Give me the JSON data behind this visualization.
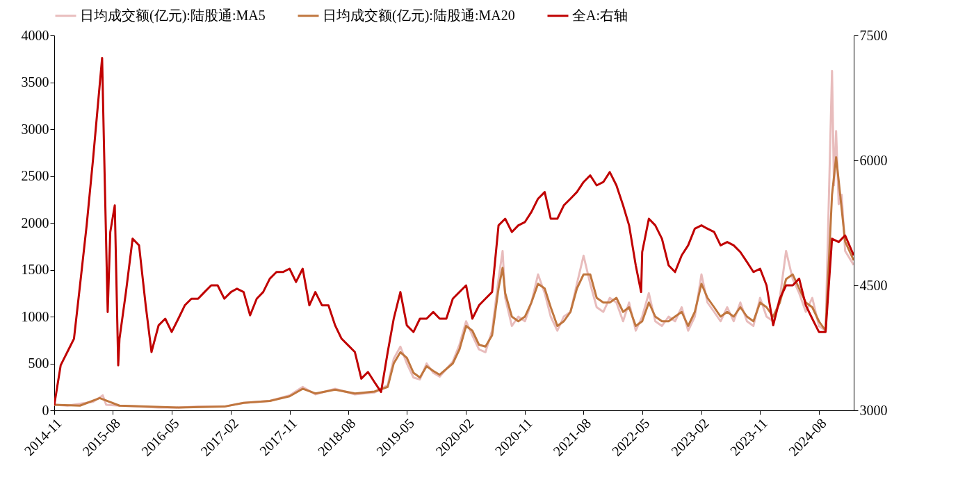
{
  "chart_data": {
    "type": "line",
    "xlim": [
      "2014-11-01",
      "2025-01-10"
    ],
    "xticks": [
      "2014-11",
      "2015-08",
      "2016-05",
      "2017-02",
      "2017-11",
      "2018-08",
      "2019-05",
      "2020-02",
      "2020-11",
      "2021-08",
      "2022-05",
      "2023-02",
      "2023-11",
      "2024-08"
    ],
    "ylim": [
      0,
      4000
    ],
    "yticks": [
      0,
      500,
      1000,
      1500,
      2000,
      2500,
      3000,
      3500,
      4000
    ],
    "y2lim": [
      3000,
      7500
    ],
    "y2ticks": [
      3000,
      4500,
      6000,
      7500
    ],
    "grid": false,
    "legend": "top",
    "line_style": "solid",
    "marker": "none",
    "series": [
      {
        "name": "日均成交额(亿元):陆股通:MA5",
        "color": "#e8bcbc",
        "x": [
          "2014-11-01",
          "2015-01",
          "2015-03",
          "2015-05",
          "2015-06-15",
          "2015-07",
          "2015-09",
          "2015-12",
          "2016-03",
          "2016-06",
          "2016-09",
          "2017-01",
          "2017-04",
          "2017-08",
          "2017-11",
          "2018-01",
          "2018-03",
          "2018-06",
          "2018-09",
          "2018-12",
          "2019-02",
          "2019-03",
          "2019-04",
          "2019-05",
          "2019-06",
          "2019-07",
          "2019-08",
          "2019-09",
          "2019-10",
          "2019-12",
          "2020-01",
          "2020-02",
          "2020-03",
          "2020-04",
          "2020-05",
          "2020-06",
          "2020-07",
          "2020-07-20",
          "2020-08",
          "2020-09",
          "2020-10",
          "2020-11",
          "2020-12",
          "2021-01",
          "2021-02",
          "2021-03",
          "2021-04",
          "2021-05",
          "2021-06",
          "2021-07",
          "2021-08",
          "2021-09",
          "2021-10",
          "2021-11",
          "2021-12",
          "2022-01",
          "2022-02",
          "2022-03",
          "2022-04",
          "2022-05",
          "2022-06",
          "2022-07",
          "2022-08",
          "2022-09",
          "2022-10",
          "2022-11",
          "2022-12",
          "2023-01",
          "2023-02",
          "2023-03",
          "2023-04",
          "2023-05",
          "2023-06",
          "2023-07",
          "2023-08",
          "2023-09",
          "2023-10",
          "2023-11",
          "2023-12",
          "2024-01",
          "2024-02",
          "2024-03",
          "2024-04",
          "2024-05",
          "2024-06",
          "2024-07",
          "2024-08",
          "2024-09",
          "2024-10",
          "2024-10-10",
          "2024-10-20",
          "2024-11",
          "2024-11-15",
          "2024-12",
          "2025-01-10"
        ],
        "values": [
          60,
          50,
          70,
          90,
          160,
          60,
          50,
          40,
          30,
          30,
          40,
          40,
          80,
          100,
          160,
          250,
          170,
          230,
          170,
          190,
          270,
          550,
          680,
          500,
          350,
          330,
          500,
          400,
          360,
          520,
          700,
          950,
          800,
          650,
          620,
          850,
          1400,
          1700,
          1200,
          900,
          1000,
          950,
          1150,
          1450,
          1250,
          1000,
          850,
          1000,
          1050,
          1350,
          1650,
          1350,
          1100,
          1050,
          1200,
          1150,
          950,
          1150,
          850,
          1000,
          1250,
          950,
          900,
          1000,
          950,
          1100,
          850,
          1000,
          1450,
          1150,
          1050,
          950,
          1100,
          950,
          1150,
          950,
          900,
          1200,
          1000,
          950,
          1200,
          1700,
          1400,
          1250,
          1050,
          1200,
          900,
          850,
          3620,
          2400,
          2980,
          2200,
          2300,
          1700,
          1550
        ]
      },
      {
        "name": "日均成交额(亿元):陆股通:MA20",
        "color": "#c0763e",
        "x": [
          "2014-11-01",
          "2015-03",
          "2015-06",
          "2015-09",
          "2016-06",
          "2017-01",
          "2017-04",
          "2017-08",
          "2017-11",
          "2018-01",
          "2018-03",
          "2018-06",
          "2018-09",
          "2018-12",
          "2019-02",
          "2019-03",
          "2019-04",
          "2019-05",
          "2019-06",
          "2019-07",
          "2019-08",
          "2019-09",
          "2019-10",
          "2019-12",
          "2020-01",
          "2020-02",
          "2020-03",
          "2020-04",
          "2020-05",
          "2020-06",
          "2020-07",
          "2020-07-20",
          "2020-08",
          "2020-09",
          "2020-10",
          "2020-11",
          "2020-12",
          "2021-01",
          "2021-02",
          "2021-03",
          "2021-04",
          "2021-05",
          "2021-06",
          "2021-07",
          "2021-08",
          "2021-09",
          "2021-10",
          "2021-11",
          "2021-12",
          "2022-01",
          "2022-02",
          "2022-03",
          "2022-04",
          "2022-05",
          "2022-06",
          "2022-07",
          "2022-08",
          "2022-09",
          "2022-10",
          "2022-11",
          "2022-12",
          "2023-01",
          "2023-02",
          "2023-03",
          "2023-04",
          "2023-05",
          "2023-06",
          "2023-07",
          "2023-08",
          "2023-09",
          "2023-10",
          "2023-11",
          "2023-12",
          "2024-01",
          "2024-02",
          "2024-03",
          "2024-04",
          "2024-05",
          "2024-06",
          "2024-07",
          "2024-08",
          "2024-09",
          "2024-10",
          "2024-10-20",
          "2024-11",
          "2024-12",
          "2025-01-10"
        ],
        "values": [
          60,
          50,
          130,
          50,
          30,
          40,
          80,
          100,
          150,
          230,
          180,
          220,
          180,
          200,
          250,
          500,
          620,
          560,
          400,
          350,
          470,
          420,
          380,
          500,
          650,
          900,
          850,
          700,
          680,
          800,
          1300,
          1520,
          1250,
          1000,
          950,
          1000,
          1150,
          1350,
          1300,
          1100,
          900,
          950,
          1050,
          1300,
          1450,
          1450,
          1200,
          1150,
          1150,
          1200,
          1050,
          1100,
          900,
          950,
          1150,
          1000,
          950,
          950,
          1000,
          1050,
          900,
          1050,
          1350,
          1200,
          1100,
          1000,
          1050,
          1000,
          1100,
          1000,
          950,
          1150,
          1100,
          1000,
          1150,
          1400,
          1450,
          1300,
          1150,
          1100,
          950,
          850,
          2300,
          2700,
          2450,
          1800,
          1600
        ]
      },
      {
        "name": "全A:右轴",
        "color": "#c00000",
        "axis": "y2",
        "x": [
          "2014-11-01",
          "2014-12",
          "2015-01",
          "2015-02",
          "2015-03",
          "2015-04",
          "2015-05",
          "2015-06-12",
          "2015-06-20",
          "2015-07-08",
          "2015-07-20",
          "2015-08-10",
          "2015-08-26",
          "2015-09",
          "2015-10",
          "2015-11",
          "2015-12",
          "2016-01",
          "2016-01-28",
          "2016-03",
          "2016-04",
          "2016-05",
          "2016-06",
          "2016-07",
          "2016-08",
          "2016-09",
          "2016-10",
          "2016-11",
          "2016-12",
          "2017-01",
          "2017-02",
          "2017-03",
          "2017-04",
          "2017-05",
          "2017-06",
          "2017-07",
          "2017-08",
          "2017-09",
          "2017-10",
          "2017-11",
          "2017-12",
          "2018-01",
          "2018-02",
          "2018-03",
          "2018-04",
          "2018-05",
          "2018-06",
          "2018-07",
          "2018-08",
          "2018-09",
          "2018-10",
          "2018-11",
          "2018-12",
          "2019-01",
          "2019-02",
          "2019-03",
          "2019-04",
          "2019-05",
          "2019-06",
          "2019-07",
          "2019-08",
          "2019-09",
          "2019-10",
          "2019-11",
          "2019-12",
          "2020-01",
          "2020-02",
          "2020-03",
          "2020-04",
          "2020-05",
          "2020-06",
          "2020-07",
          "2020-08",
          "2020-09",
          "2020-10",
          "2020-11",
          "2020-12",
          "2021-01",
          "2021-02",
          "2021-03",
          "2021-04",
          "2021-05",
          "2021-06",
          "2021-07",
          "2021-08",
          "2021-09",
          "2021-10",
          "2021-11",
          "2021-12",
          "2022-01",
          "2022-02",
          "2022-03",
          "2022-04",
          "2022-04-26",
          "2022-05",
          "2022-06",
          "2022-07",
          "2022-08",
          "2022-09",
          "2022-10",
          "2022-11",
          "2022-12",
          "2023-01",
          "2023-02",
          "2023-03",
          "2023-04",
          "2023-05",
          "2023-06",
          "2023-07",
          "2023-08",
          "2023-09",
          "2023-10",
          "2023-11",
          "2023-12",
          "2024-01",
          "2024-02",
          "2024-03",
          "2024-04",
          "2024-05",
          "2024-06",
          "2024-07",
          "2024-08",
          "2024-09",
          "2024-10",
          "2024-11",
          "2024-12",
          "2025-01-10"
        ],
        "values": [
          3060,
          3540,
          3700,
          3860,
          4500,
          5220,
          6020,
          7230,
          6260,
          4180,
          5140,
          5460,
          3540,
          3860,
          4420,
          5060,
          4980,
          4260,
          3700,
          4020,
          4100,
          3940,
          4100,
          4260,
          4340,
          4340,
          4420,
          4500,
          4500,
          4340,
          4420,
          4460,
          4420,
          4140,
          4340,
          4420,
          4580,
          4660,
          4660,
          4700,
          4540,
          4700,
          4260,
          4420,
          4260,
          4260,
          4020,
          3860,
          3780,
          3700,
          3380,
          3460,
          3340,
          3220,
          3700,
          4100,
          4420,
          4020,
          3940,
          4100,
          4100,
          4180,
          4100,
          4100,
          4340,
          4420,
          4500,
          4100,
          4260,
          4340,
          4420,
          5220,
          5300,
          5140,
          5220,
          5260,
          5380,
          5540,
          5620,
          5300,
          5300,
          5460,
          5540,
          5620,
          5740,
          5820,
          5700,
          5740,
          5860,
          5700,
          5460,
          5220,
          4740,
          4420,
          4900,
          5300,
          5220,
          5060,
          4740,
          4660,
          4860,
          4980,
          5180,
          5220,
          5180,
          5140,
          4980,
          5020,
          4980,
          4900,
          4780,
          4660,
          4700,
          4500,
          4020,
          4340,
          4500,
          4500,
          4580,
          4260,
          4100,
          3940,
          3940,
          5060,
          5020,
          5100,
          4860
        ]
      }
    ]
  }
}
